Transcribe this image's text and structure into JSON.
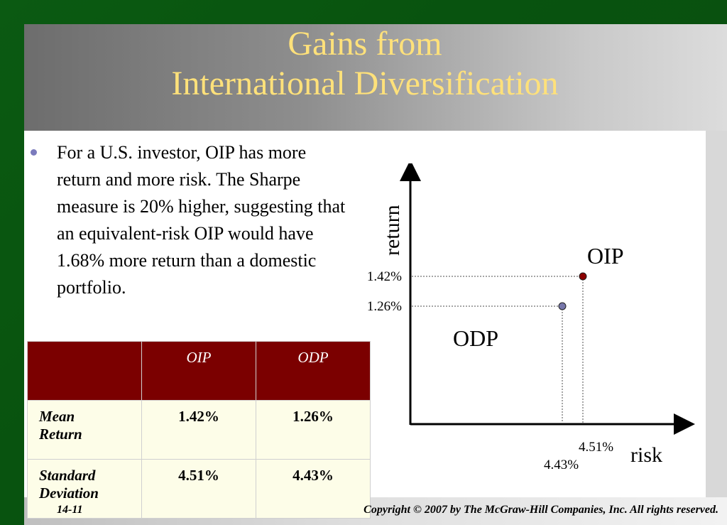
{
  "slide": {
    "title_line1": "Gains from",
    "title_line2": "International Diversification",
    "bullet": "For a U.S. investor, OIP has more return and more risk. The Sharpe measure is 20% higher, suggesting that an equivalent-risk OIP would have 1.68% more return than a domestic portfolio.",
    "page_number": "14-11",
    "copyright": "Copyright © 2007 by The McGraw-Hill Companies, Inc.  All rights reserved.",
    "colors": {
      "title": "#ffe17a",
      "table_header": "#7b0000",
      "oip_point": "#8b0000",
      "odp_point": "#7777aa"
    }
  },
  "table": {
    "headers": [
      "",
      "OIP",
      "ODP"
    ],
    "rows": [
      {
        "label_line1": "Mean",
        "label_line2": "Return",
        "oip": "1.42%",
        "odp": "1.26%"
      },
      {
        "label_line1": "Standard",
        "label_line2": "Deviation",
        "oip": "4.51%",
        "odp": "4.43%"
      }
    ]
  },
  "chart_data": {
    "type": "scatter",
    "xlabel": "risk",
    "ylabel": "return",
    "points": [
      {
        "name": "OIP",
        "x": 4.51,
        "y": 1.42,
        "x_label": "4.51%",
        "y_label": "1.42%"
      },
      {
        "name": "ODP",
        "x": 4.43,
        "y": 1.26,
        "x_label": "4.43%",
        "y_label": "1.26%"
      }
    ],
    "grid": false
  }
}
